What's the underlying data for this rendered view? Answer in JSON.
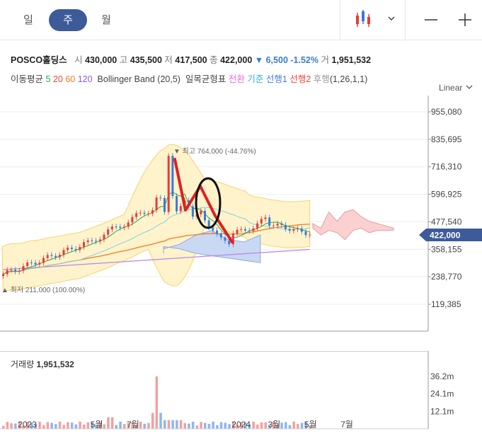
{
  "tabs": {
    "day": "일",
    "week": "주",
    "month": "월"
  },
  "toolbar": {
    "chart_type_icon": "candlestick-icon",
    "dropdown_icon": "chevron-down-icon",
    "zoom_out_icon": "minus-icon",
    "zoom_in_icon": "plus-icon"
  },
  "quote": {
    "name": "POSCO홀딩스",
    "open_label": "시",
    "open": "430,000",
    "high_label": "고",
    "high": "435,500",
    "low_label": "저",
    "low": "417,500",
    "close_label": "종",
    "close": "422,000",
    "change": "▼ 6,500 -1.52%",
    "volume_label": "거",
    "volume": "1,951,532"
  },
  "indicators": {
    "ma_label": "이동평균",
    "ma5": "5",
    "ma20": "20",
    "ma60": "60",
    "ma120": "120",
    "bb": "Bollinger Band (20,5)",
    "ichimoku": "일목균형표",
    "ich1": "전환",
    "ich2": "기준",
    "ich3": "선행1",
    "ich4": "선행2",
    "ich5": "후행",
    "ich_params": "(1,26,1,1)"
  },
  "scale_mode": "Linear",
  "annotations": {
    "high": "▼ 최고 764,000 (-44.76%)",
    "low": "▲ 최저 211,000 (100.00%)"
  },
  "volume_panel": {
    "title": "거래량",
    "value": "1,951,532"
  },
  "colors": {
    "up": "#e83a3a",
    "down": "#3a7ad5",
    "ma5": "#2eaa4a",
    "ma20": "#e8473a",
    "ma60": "#f07c22",
    "ma120": "#8a5ad8",
    "bb_fill": "#fff3cc",
    "price_tag": "#3d5a99"
  },
  "chart_data": {
    "type": "candlestick",
    "title": "POSCO홀딩스",
    "y_ticks": [
      "955,080",
      "835,695",
      "716,310",
      "596,925",
      "477,540",
      "358,155",
      "238,770",
      "119,385"
    ],
    "y_tick_values": [
      955080,
      835695,
      716310,
      596925,
      477540,
      358155,
      238770,
      119385
    ],
    "current_price_label": "422,000",
    "current_price": 422000,
    "x_ticks": [
      "2023",
      "5월",
      "7월",
      "2024",
      "3월",
      "5월",
      "7월"
    ],
    "x_tick_weeks": [
      6,
      24,
      33,
      59,
      68,
      77,
      86
    ],
    "volume_ticks": [
      "36.2m",
      "24.1m",
      "12.1m"
    ],
    "volume_tick_values": [
      36.2,
      24.1,
      12.1
    ],
    "period_high": 764000,
    "period_low": 211000,
    "weeks": 77
  }
}
